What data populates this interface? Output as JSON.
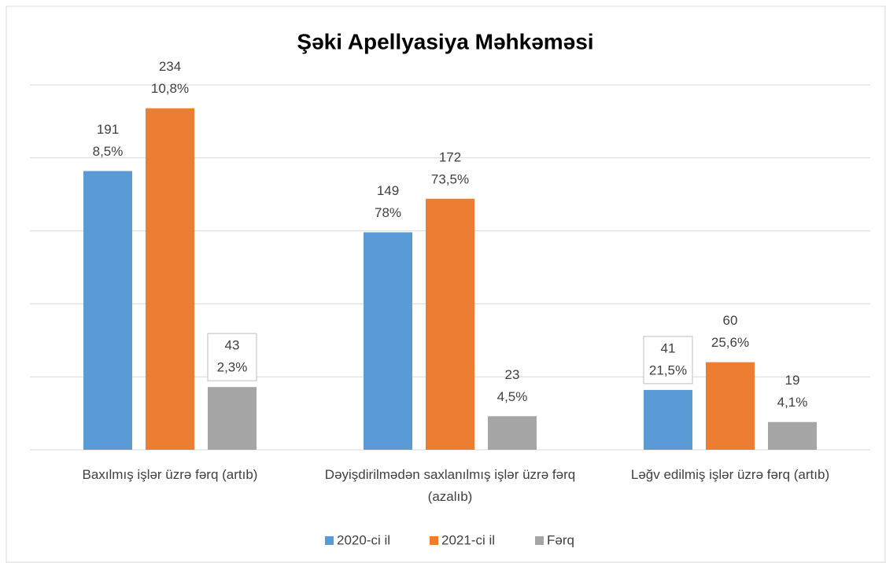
{
  "chart_data": {
    "type": "bar",
    "title": "Şəki Apellyasiya Məhkəməsi",
    "categories": [
      "Baxılmış işlər üzrə fərq (artıb)",
      "Dəyişdirilmədən saxlanılmış işlər üzrə fərq (azalıb)",
      "Ləğv edilmiş işlər üzrə fərq (artıb)"
    ],
    "series": [
      {
        "name": "2020-ci il",
        "color": "#5b9bd5",
        "values": [
          191,
          149,
          41
        ],
        "percent_labels": [
          "8,5%",
          "78%",
          "21,5%"
        ]
      },
      {
        "name": "2021-ci il",
        "color": "#ed7d31",
        "values": [
          234,
          172,
          60
        ],
        "percent_labels": [
          "10,8%",
          "73,5%",
          "25,6%"
        ]
      },
      {
        "name": "Fərq",
        "color": "#a5a5a5",
        "values": [
          43,
          23,
          19
        ],
        "percent_labels": [
          "2,3%",
          "4,5%",
          "4,1%"
        ]
      }
    ],
    "ylim": [
      0,
      250
    ],
    "yticks": [
      0,
      50,
      100,
      150,
      200,
      250
    ],
    "grid": true,
    "legend": "bottom"
  }
}
